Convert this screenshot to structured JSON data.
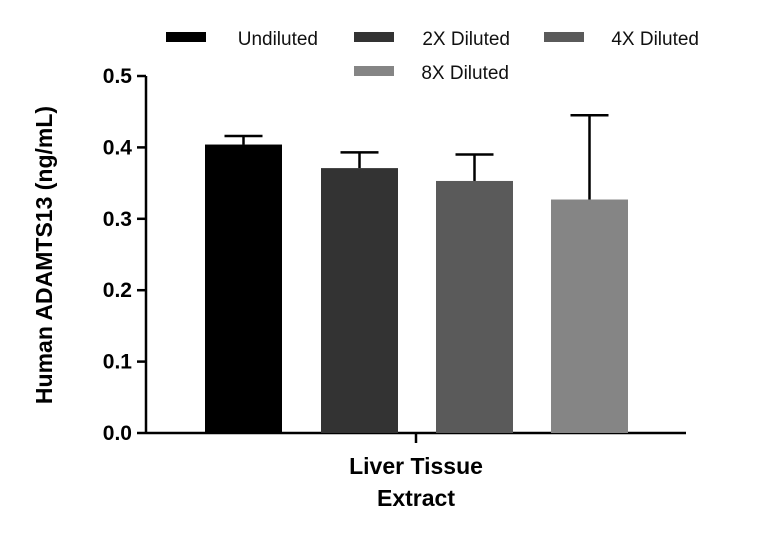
{
  "chart_data": {
    "type": "bar",
    "title": "",
    "xlabel": "",
    "ylabel": "Human ADAMTS13 (ng/mL)",
    "categories": [
      "Liver Tissue Extract"
    ],
    "category_lines": [
      "Liver Tissue",
      "Extract"
    ],
    "ylim": [
      0.0,
      0.5
    ],
    "yticks": [
      "0.0",
      "0.1",
      "0.2",
      "0.3",
      "0.4",
      "0.5"
    ],
    "grid": false,
    "legend_position": "top",
    "series": [
      {
        "name": "Undiluted",
        "values": [
          0.404
        ],
        "error": [
          0.012
        ],
        "color": "#000000"
      },
      {
        "name": "2X Diluted",
        "values": [
          0.371
        ],
        "error": [
          0.022
        ],
        "color": "#333333"
      },
      {
        "name": "4X Diluted",
        "values": [
          0.353
        ],
        "error": [
          0.037
        ],
        "color": "#5a5a5a"
      },
      {
        "name": "8X Diluted",
        "values": [
          0.327
        ],
        "error": [
          0.118
        ],
        "color": "#858585"
      }
    ]
  }
}
